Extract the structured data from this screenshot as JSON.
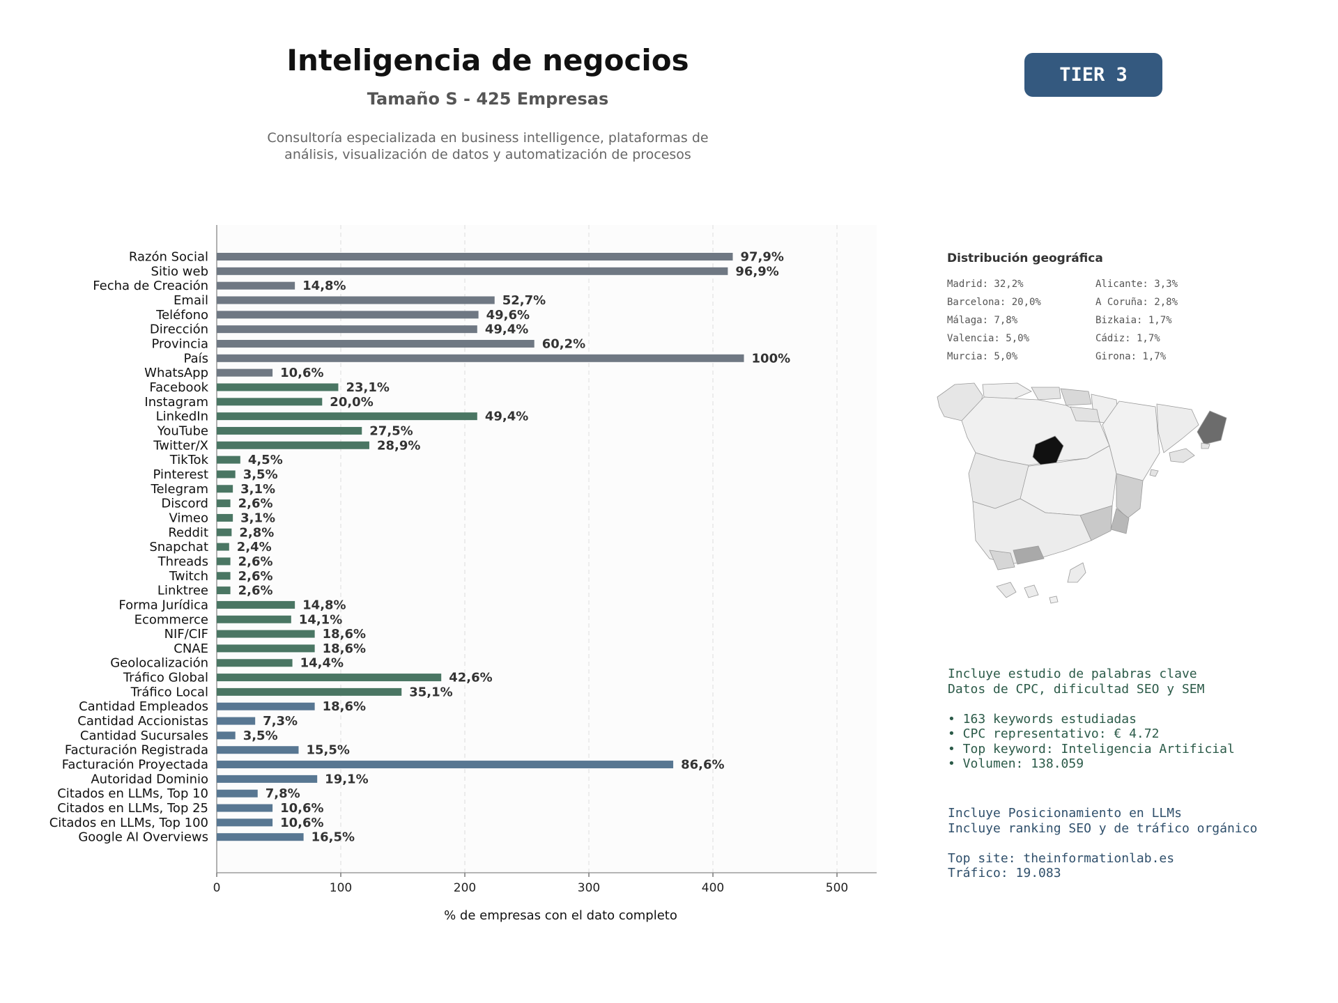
{
  "header": {
    "title": "Inteligencia de negocios",
    "subtitle": "Tamaño S - 425 Empresas",
    "description_line1": "Consultoría especializada en business intelligence, plataformas de",
    "description_line2": "análisis, visualización de datos y automatización de procesos",
    "tier_label": "TIER 3"
  },
  "chart_data": {
    "type": "bar",
    "orientation": "horizontal",
    "xlabel": "% de empresas con el dato completo",
    "xlim": [
      0,
      532
    ],
    "xticks": [
      0,
      100,
      200,
      300,
      400,
      500
    ],
    "grid": "vertical dashed",
    "colors": {
      "gray": "#6f7883",
      "green": "#4a7663",
      "blue": "#587792"
    },
    "categories": [
      "Razón Social",
      "Sitio web",
      "Fecha de Creación",
      "Email",
      "Teléfono",
      "Dirección",
      "Provincia",
      "País",
      "WhatsApp",
      "Facebook",
      "Instagram",
      "LinkedIn",
      "YouTube",
      "Twitter/X",
      "TikTok",
      "Pinterest",
      "Telegram",
      "Discord",
      "Vimeo",
      "Reddit",
      "Snapchat",
      "Threads",
      "Twitch",
      "Linktree",
      "Forma Jurídica",
      "Ecommerce",
      "NIF/CIF",
      "CNAE",
      "Geolocalización",
      "Tráfico Global",
      "Tráfico Local",
      "Cantidad Empleados",
      "Cantidad Accionistas",
      "Cantidad Sucursales",
      "Facturación Registrada",
      "Facturación Proyectada",
      "Autoridad Dominio",
      "Citados en LLMs, Top 10",
      "Citados en LLMs, Top 25",
      "Citados en LLMs, Top 100",
      "Google AI Overviews"
    ],
    "values": [
      416,
      412,
      63,
      224,
      211,
      210,
      256,
      425,
      45,
      98,
      85,
      210,
      117,
      123,
      19,
      15,
      13,
      11,
      13,
      12,
      10,
      11,
      11,
      11,
      63,
      60,
      79,
      79,
      61,
      181,
      149,
      79,
      31,
      15,
      66,
      368,
      81,
      33,
      45,
      45,
      70
    ],
    "labels": [
      "97,9%",
      "96,9%",
      "14,8%",
      "52,7%",
      "49,6%",
      "49,4%",
      "60,2%",
      "100%",
      "10,6%",
      "23,1%",
      "20,0%",
      "49,4%",
      "27,5%",
      "28,9%",
      "4,5%",
      "3,5%",
      "3,1%",
      "2,6%",
      "3,1%",
      "2,8%",
      "2,4%",
      "2,6%",
      "2,6%",
      "2,6%",
      "14,8%",
      "14,1%",
      "18,6%",
      "18,6%",
      "14,4%",
      "42,6%",
      "35,1%",
      "18,6%",
      "7,3%",
      "3,5%",
      "15,5%",
      "86,6%",
      "19,1%",
      "7,8%",
      "10,6%",
      "10,6%",
      "16,5%"
    ],
    "color_groups": [
      "gray",
      "gray",
      "gray",
      "gray",
      "gray",
      "gray",
      "gray",
      "gray",
      "gray",
      "green",
      "green",
      "green",
      "green",
      "green",
      "green",
      "green",
      "green",
      "green",
      "green",
      "green",
      "green",
      "green",
      "green",
      "green",
      "green",
      "green",
      "green",
      "green",
      "green",
      "green",
      "green",
      "blue",
      "blue",
      "blue",
      "blue",
      "blue",
      "blue",
      "blue",
      "blue",
      "blue",
      "blue"
    ]
  },
  "geo": {
    "title": "Distribución geográfica",
    "col1": [
      "Madrid: 32,2%",
      "Barcelona: 20,0%",
      "Málaga: 7,8%",
      "Valencia: 5,0%",
      "Murcia: 5,0%"
    ],
    "col2": [
      "Alicante: 3,3%",
      "A Coruña: 2,8%",
      "Bizkaia: 1,7%",
      "Cádiz: 1,7%",
      "Girona: 1,7%"
    ]
  },
  "keywords": {
    "line1": "Incluye estudio de palabras clave",
    "line2": "Datos de CPC, dificultad SEO y SEM",
    "bullet1": "• 163 keywords estudiadas",
    "bullet2": "• CPC representativo: € 4.72",
    "bullet3": "• Top keyword: Inteligencia Artificial",
    "bullet4": "• Volumen: 138.059"
  },
  "llm": {
    "line1": "Incluye Posicionamiento en LLMs",
    "line2": "Incluye ranking SEO y de tráfico orgánico",
    "top_site": "Top site: theinformationlab.es",
    "traffic": "Tráfico: 19.083"
  }
}
